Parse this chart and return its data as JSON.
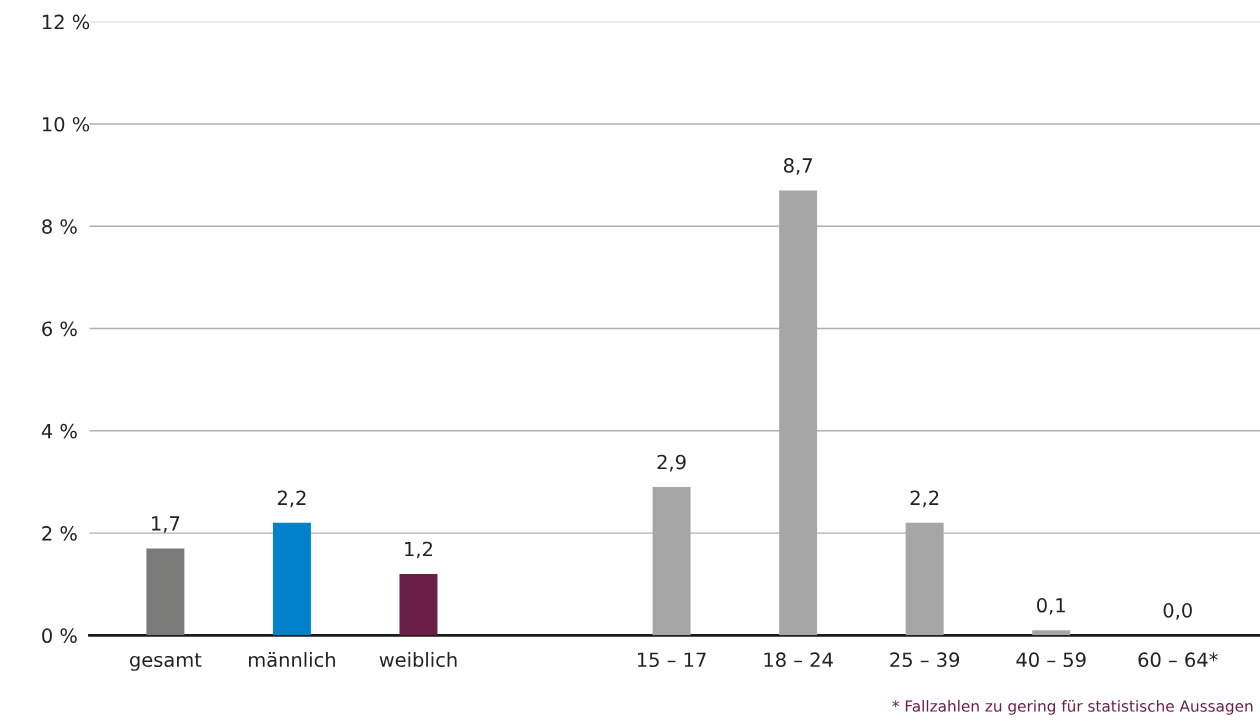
{
  "chart_data": {
    "type": "bar",
    "categories": [
      "gesamt",
      "männlich",
      "weiblich",
      null,
      "15 – 17",
      "18 – 24",
      "25 – 39",
      "40 – 59",
      "60 – 64*"
    ],
    "values": [
      1.7,
      2.2,
      1.2,
      null,
      2.9,
      8.7,
      2.2,
      0.1,
      0.0
    ],
    "colors": [
      "#7a7a79",
      "#0081c9",
      "#6a1f46",
      null,
      "#a6a6a6",
      "#a6a6a6",
      "#a6a6a6",
      "#a6a6a6",
      "#a6a6a6"
    ],
    "value_labels": [
      "1,7",
      "2,2",
      "1,2",
      null,
      "2,9",
      "8,7",
      "2,2",
      "0,1",
      "0,0"
    ],
    "ylim": [
      0,
      12
    ],
    "yticks": [
      {
        "value": 0,
        "label": "0 %"
      },
      {
        "value": 2,
        "label": "2 %"
      },
      {
        "value": 4,
        "label": "4 %"
      },
      {
        "value": 6,
        "label": "6 %"
      },
      {
        "value": 8,
        "label": "8 %"
      },
      {
        "value": 10,
        "label": "10 %"
      },
      {
        "value": 12,
        "label": "12 %"
      }
    ],
    "grid": "y",
    "legend": false,
    "annotations": [
      "* Fallzahlen zu gering für statistische Aussagen"
    ]
  }
}
